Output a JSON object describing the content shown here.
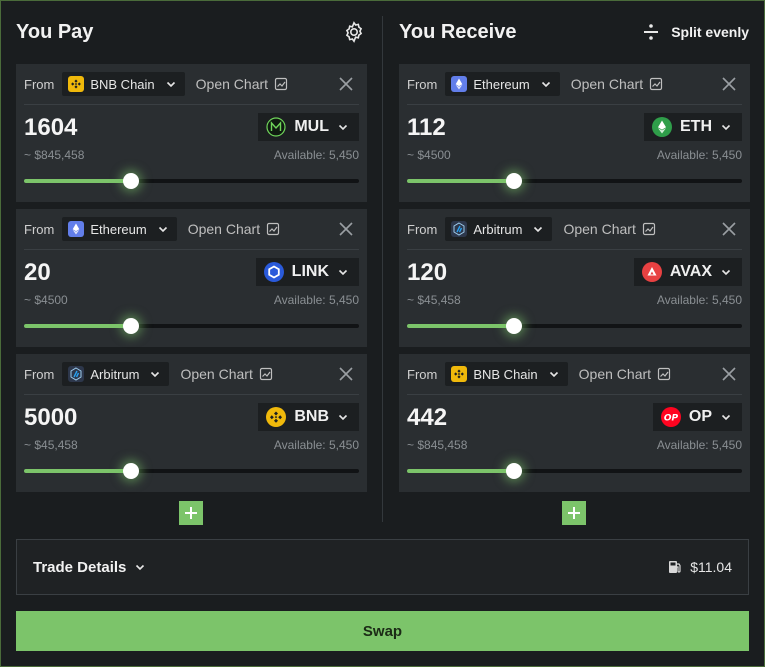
{
  "pay": {
    "title": "You Pay",
    "cards": [
      {
        "from_label": "From",
        "chain": "BNB Chain",
        "chain_icon": "bnb-chain-icon",
        "open_chart": "Open Chart",
        "amount": "1604",
        "usd": "~ $845,458",
        "token": "MUL",
        "token_icon": "mul-token-icon",
        "available": "Available: 5,450",
        "slider": 0.32
      },
      {
        "from_label": "From",
        "chain": "Ethereum",
        "chain_icon": "ethereum-chain-icon",
        "open_chart": "Open Chart",
        "amount": "20",
        "usd": "~ $4500",
        "token": "LINK",
        "token_icon": "link-token-icon",
        "available": "Available: 5,450",
        "slider": 0.32
      },
      {
        "from_label": "From",
        "chain": "Arbitrum",
        "chain_icon": "arbitrum-chain-icon",
        "open_chart": "Open Chart",
        "amount": "5000",
        "usd": "~ $45,458",
        "token": "BNB",
        "token_icon": "bnb-token-icon",
        "available": "Available: 5,450",
        "slider": 0.32
      }
    ]
  },
  "receive": {
    "title": "You Receive",
    "split_label": "Split evenly",
    "cards": [
      {
        "from_label": "From",
        "chain": "Ethereum",
        "chain_icon": "ethereum-chain-icon",
        "open_chart": "Open Chart",
        "amount": "112",
        "usd": "~ $4500",
        "token": "ETH",
        "token_icon": "eth-token-icon",
        "available": "Available: 5,450",
        "slider": 0.32
      },
      {
        "from_label": "From",
        "chain": "Arbitrum",
        "chain_icon": "arbitrum-chain-icon",
        "open_chart": "Open Chart",
        "amount": "120",
        "usd": "~ $45,458",
        "token": "AVAX",
        "token_icon": "avax-token-icon",
        "available": "Available: 5,450",
        "slider": 0.32
      },
      {
        "from_label": "From",
        "chain": "BNB Chain",
        "chain_icon": "bnb-chain-icon",
        "open_chart": "Open Chart",
        "amount": "442",
        "usd": "~ $845,458",
        "token": "OP",
        "token_icon": "op-token-icon",
        "available": "Available: 5,450",
        "slider": 0.32
      }
    ]
  },
  "trade_details": {
    "label": "Trade Details",
    "fee": "$11.04",
    "fee_icon": "gas-pump-icon"
  },
  "swap_label": "Swap",
  "colors": {
    "accent": "#7cc46a",
    "card": "#2a2e31",
    "background": "#1a1d1f"
  }
}
